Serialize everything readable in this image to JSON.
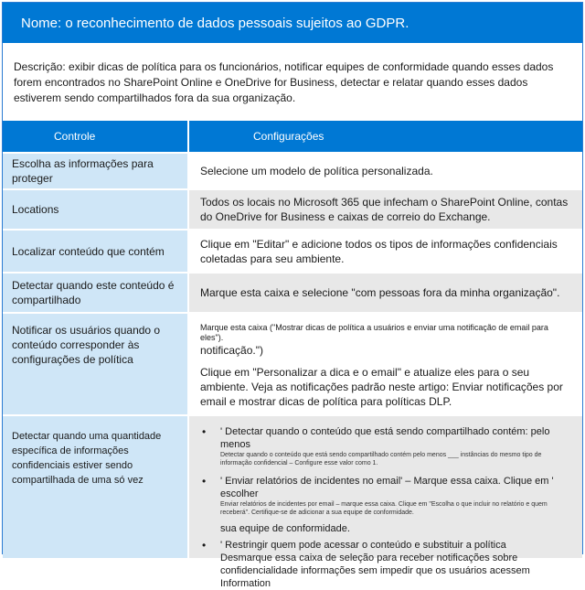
{
  "title": "Nome: o reconhecimento de dados pessoais sujeitos ao GDPR.",
  "description": "Descrição: exibir dicas de política para os funcionários, notificar equipes de conformidade quando esses dados forem encontrados no SharePoint Online e OneDrive for Business, detectar e relatar quando esses dados estiverem sendo compartilhados fora da sua organização.",
  "columns": {
    "control": "Controle",
    "settings": "Configurações"
  },
  "rows": [
    {
      "control": "Escolha as informações para proteger",
      "setting": "Selecione um modelo de política personalizada."
    },
    {
      "control": "Locations",
      "setting": "Todos os locais no Microsoft 365 que infecham o SharePoint Online, contas do OneDrive for Business e caixas de correio do Exchange."
    },
    {
      "control": "Localizar conteúdo que contém",
      "setting": "Clique em \"Editar\" e adicione todos os tipos de informações confidenciais coletadas para seu ambiente."
    },
    {
      "control": "Detectar quando este conteúdo é compartilhado",
      "setting": "Marque esta caixa e selecione \"com pessoas fora da minha organização\"."
    },
    {
      "control": "Notificar os usuários quando o conteúdo corresponder às configurações de política",
      "setting_small": "Marque esta caixa (\"Mostrar dicas de política a usuários e enviar uma notificação de email para eles\").",
      "setting_large": "notificação.\")",
      "setting_p2": "Clique em \"Personalizar a dica e o email\" e atualize eles para o seu ambiente. Veja as notificações padrão neste artigo: Enviar notificações por email e mostrar dicas de política para políticas DLP."
    },
    {
      "control": "Detectar quando uma quantidade específica de informações confidenciais estiver sendo compartilhada de uma só vez",
      "b1": "' Detectar quando o conteúdo que está sendo compartilhado contém: pelo menos",
      "b1_small": "Detectar quando o conteúdo que está sendo compartilhado contém pelo menos ___ instâncias do mesmo tipo de informação confidencial – Configure esse valor como 1.",
      "b2": "' Enviar relatórios de incidentes no email' – Marque essa caixa. Clique em ' escolher",
      "b2_small": "Enviar relatórios de incidentes por email – marque essa caixa. Clique em \"Escolha o que incluir no relatório e quem receberá\". Certifique-se de adicionar a sua equipe de conformidade.",
      "b2_tail": "sua equipe de conformidade.",
      "b3": "' Restringir quem pode acessar o conteúdo e substituir a política",
      "b3_tail": "Desmarque essa caixa de seleção para receber notificações sobre confidencialidade informações sem impedir que os usuários acessem",
      "b3_end": "Information"
    }
  ],
  "colors": {
    "header_blue": "#0078d4",
    "control_bg": "#cfe6f7",
    "shade_bg": "#e8e8e8"
  }
}
